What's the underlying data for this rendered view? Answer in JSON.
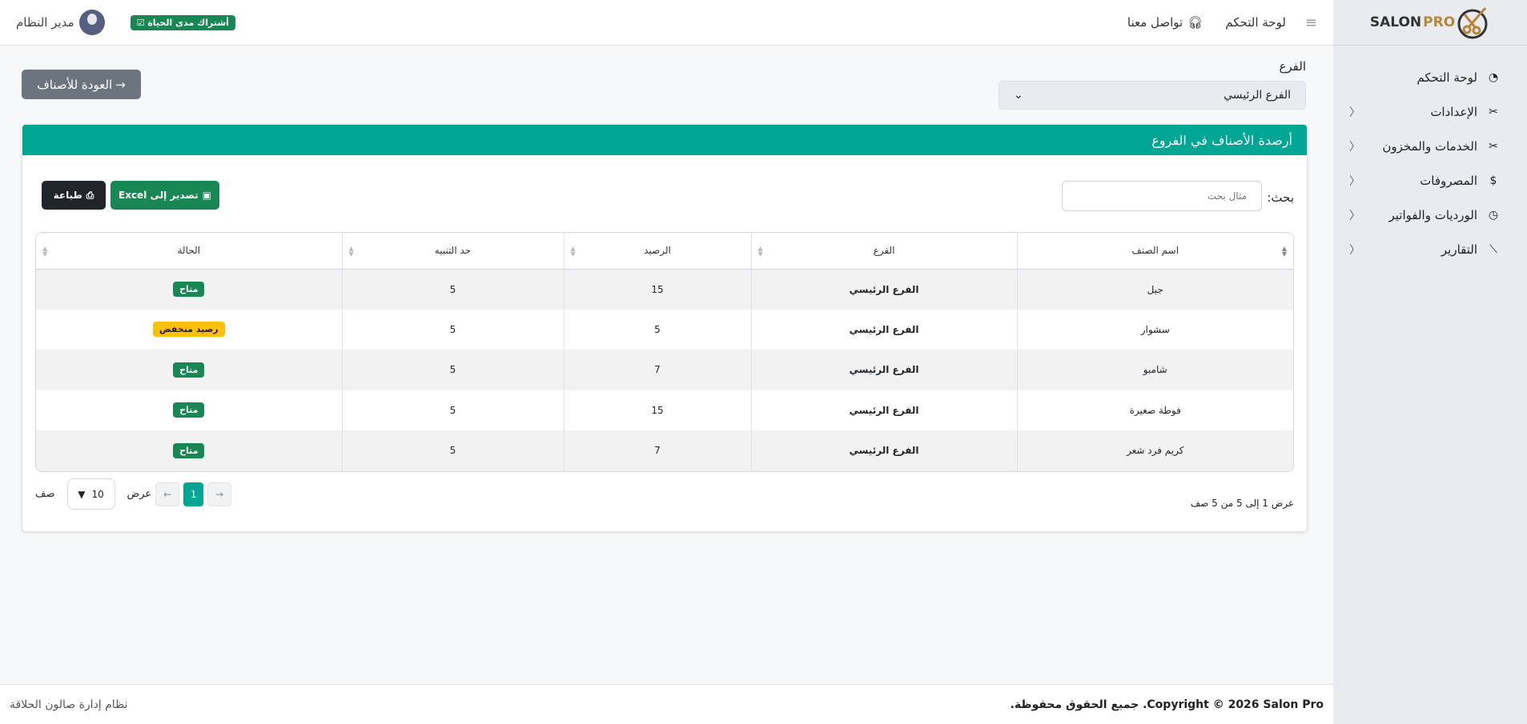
{
  "brand": {
    "logo_text_1": "SALON",
    "logo_text_2": "PRO"
  },
  "sidebar": {
    "items": [
      {
        "label": "لوحة التحكم",
        "icon": "gauge-icon",
        "has_children": false
      },
      {
        "label": "الإعدادات",
        "icon": "tools-icon",
        "has_children": true
      },
      {
        "label": "الخدمات والمخزون",
        "icon": "scissors-icon",
        "has_children": true
      },
      {
        "label": "المصروفات",
        "icon": "cash-icon",
        "has_children": true
      },
      {
        "label": "الورديات والفواتير",
        "icon": "clock-icon",
        "has_children": true
      },
      {
        "label": "التقارير",
        "icon": "chart-icon",
        "has_children": true
      }
    ]
  },
  "topbar": {
    "dashboard": "لوحة التحكم",
    "contact": "تواصل معنا",
    "subscription": "أشتراك مدى الحياة",
    "user": "مدير النظام"
  },
  "filter": {
    "label": "الفرع",
    "selected": "الفرع الرئيسي"
  },
  "back_button": "العودة للأصناف",
  "card": {
    "title": "أرصدة الأصناف في الفروع",
    "search_label": "بحث:",
    "search_placeholder": "مثال بحث",
    "export_excel": "تصدير إلى Excel",
    "print": "طباعة"
  },
  "table": {
    "columns": [
      "اسم الصنف",
      "الفرع",
      "الرصيد",
      "حد التنبيه",
      "الحالة"
    ],
    "rows": [
      {
        "name": "جيل",
        "branch": "الفرع الرئيسي",
        "balance": "15",
        "alert": "5",
        "status": "متاح",
        "status_type": "ok"
      },
      {
        "name": "سشوار",
        "branch": "الفرع الرئيسي",
        "balance": "5",
        "alert": "5",
        "status": "رصيد منخفض",
        "status_type": "low"
      },
      {
        "name": "شامبو",
        "branch": "الفرع الرئيسي",
        "balance": "7",
        "alert": "5",
        "status": "متاح",
        "status_type": "ok"
      },
      {
        "name": "فوطة صغيرة",
        "branch": "الفرع الرئيسي",
        "balance": "15",
        "alert": "5",
        "status": "متاح",
        "status_type": "ok"
      },
      {
        "name": "كريم فرد شعر",
        "branch": "الفرع الرئيسي",
        "balance": "7",
        "alert": "5",
        "status": "متاح",
        "status_type": "ok"
      }
    ]
  },
  "pagination": {
    "info": "عرض 1 إلى 5 من 5 صف",
    "current_page": "1",
    "show_label": "عرض",
    "page_size": "10",
    "rows_label": "صف",
    "prev": "←",
    "next": "→"
  },
  "footer": {
    "copyright": "Copyright © 2026 Salon Pro. جميع الحقوق محفوظة.",
    "system": "نظام إدارة صالون الحلاقة"
  },
  "colors": {
    "primary": "#00a693",
    "success": "#198754",
    "warning": "#ffc107",
    "secondary": "#6c757d",
    "dark": "#212529"
  }
}
